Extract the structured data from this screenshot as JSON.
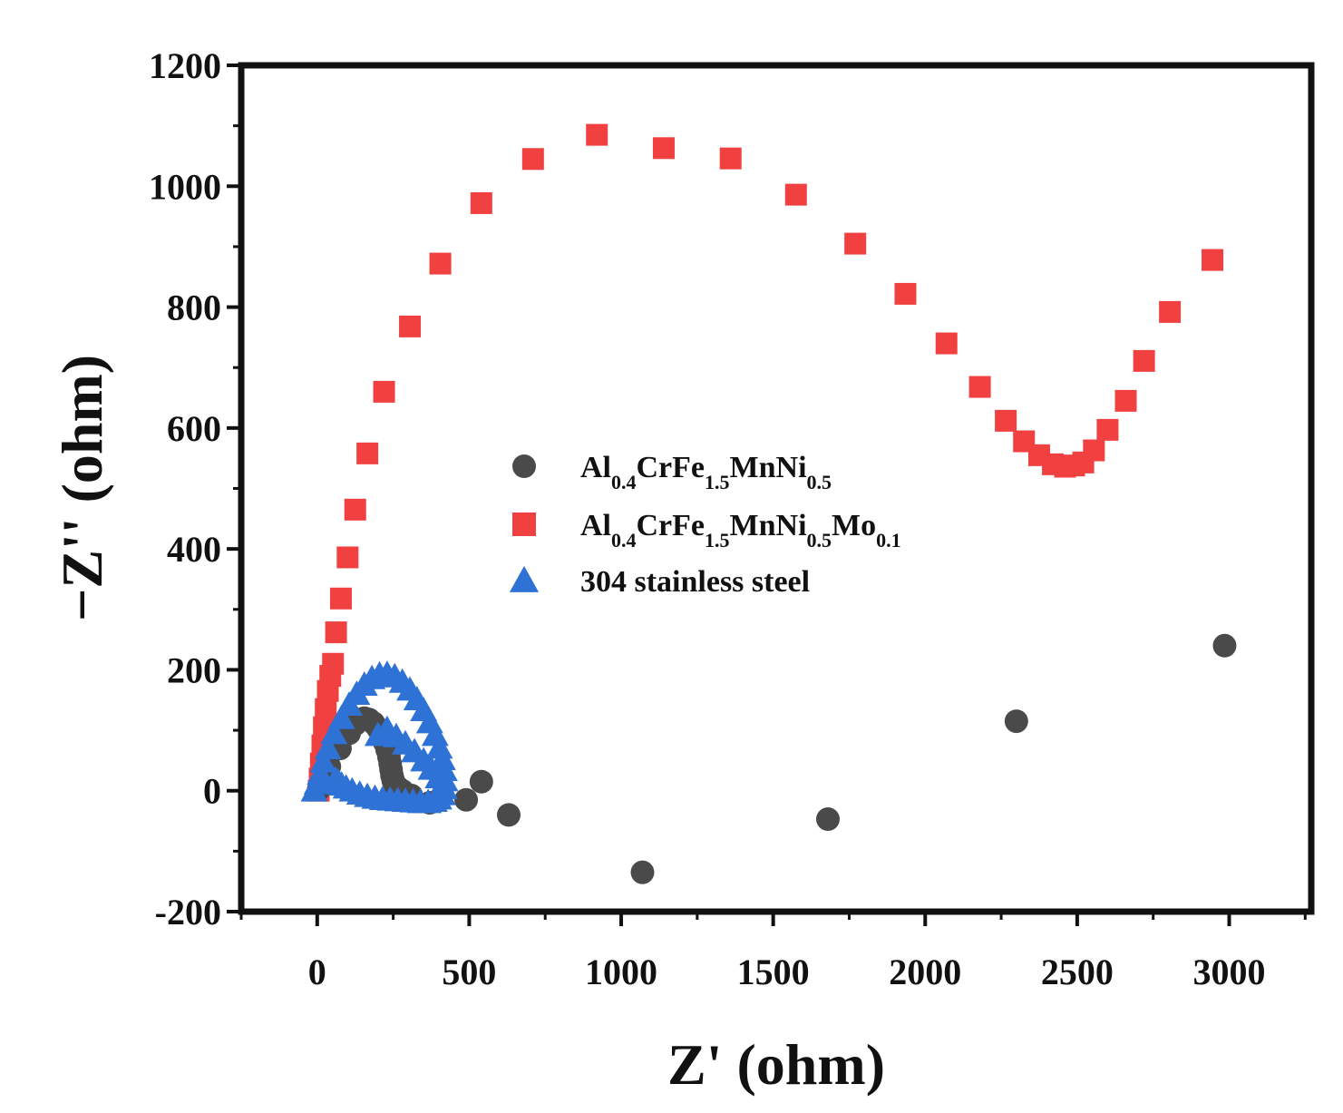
{
  "chart_data": {
    "type": "scatter",
    "title": "",
    "xlabel": "Z' (ohm)",
    "ylabel": "−Z'' (ohm)",
    "xlim": [
      -250,
      3270
    ],
    "ylim": [
      -200,
      1200
    ],
    "xticks": [
      0,
      500,
      1000,
      1500,
      2000,
      2500,
      3000
    ],
    "yticks": [
      -200,
      0,
      200,
      400,
      600,
      800,
      1000,
      1200
    ],
    "xtick_labels": [
      "0",
      "500",
      "1000",
      "1500",
      "2000",
      "2500",
      "3000"
    ],
    "ytick_labels": [
      "-200",
      "0",
      "200",
      "400",
      "600",
      "800",
      "1000",
      "1200"
    ],
    "grid": false,
    "legend_position": "center",
    "series": [
      {
        "name": "Al0.4CrFe1.5MnNi0.5",
        "label_parts": [
          {
            "text": "Al",
            "sub": "0.4"
          },
          {
            "text": "CrFe",
            "sub": "1.5"
          },
          {
            "text": "MnNi",
            "sub": "0.5"
          }
        ],
        "marker": "circle",
        "color": "#4a4a4a",
        "x": [
          5,
          15,
          40,
          75,
          105,
          125,
          140,
          155,
          170,
          185,
          200,
          212,
          222,
          230,
          236,
          240,
          243,
          246,
          250,
          256,
          266,
          280,
          310,
          370,
          490,
          540,
          630,
          1070,
          1680,
          2300,
          2985
        ],
        "y": [
          2,
          15,
          40,
          70,
          95,
          110,
          118,
          120,
          118,
          112,
          103,
          92,
          80,
          68,
          56,
          45,
          35,
          25,
          17,
          10,
          5,
          0,
          -8,
          -20,
          -15,
          15,
          -40,
          -135,
          -47,
          115,
          240
        ]
      },
      {
        "name": "Al0.4CrFe1.5MnNi0.5Mo0.1",
        "label_parts": [
          {
            "text": "Al",
            "sub": "0.4"
          },
          {
            "text": "CrFe",
            "sub": "1.5"
          },
          {
            "text": "MnNi",
            "sub": "0.5"
          },
          {
            "text": "Mo",
            "sub": "0.1"
          }
        ],
        "marker": "square",
        "color": "#f04040",
        "x": [
          5,
          8,
          12,
          17,
          22,
          28,
          35,
          43,
          52,
          62,
          78,
          100,
          125,
          165,
          220,
          305,
          405,
          540,
          710,
          920,
          1140,
          1360,
          1575,
          1770,
          1935,
          2070,
          2180,
          2265,
          2325,
          2375,
          2420,
          2460,
          2490,
          2520,
          2555,
          2600,
          2660,
          2720,
          2805,
          2945
        ],
        "y": [
          0,
          20,
          45,
          75,
          105,
          135,
          165,
          190,
          210,
          262,
          318,
          386,
          465,
          558,
          660,
          768,
          872,
          972,
          1045,
          1085,
          1063,
          1046,
          986,
          905,
          822,
          740,
          668,
          612,
          578,
          555,
          540,
          536,
          538,
          543,
          563,
          597,
          645,
          711,
          792,
          878
        ]
      },
      {
        "name": "304 stainless steel",
        "label_parts": [
          {
            "text": "304 stainless steel",
            "sub": ""
          }
        ],
        "marker": "triangle",
        "color": "#2f72d6",
        "x": [
          -10,
          0,
          10,
          20,
          35,
          55,
          80,
          105,
          130,
          155,
          180,
          205,
          230,
          255,
          280,
          305,
          328,
          350,
          370,
          388,
          402,
          412,
          418,
          420,
          418,
          412,
          400,
          385,
          365,
          340,
          315,
          290,
          265,
          240,
          215,
          190,
          165,
          140,
          115,
          95,
          80,
          70,
          60,
          200,
          230,
          260,
          290,
          320,
          350,
          375,
          398
        ],
        "y": [
          0,
          12,
          28,
          48,
          70,
          95,
          120,
          142,
          160,
          175,
          186,
          192,
          193,
          189,
          180,
          167,
          151,
          133,
          113,
          92,
          71,
          52,
          34,
          17,
          4,
          -6,
          -13,
          -17,
          -19,
          -19,
          -18,
          -17,
          -16,
          -15,
          -14,
          -12,
          -9,
          -5,
          0,
          5,
          10,
          14,
          18,
          92,
          102,
          90,
          78,
          65,
          50,
          36,
          22
        ]
      }
    ]
  }
}
